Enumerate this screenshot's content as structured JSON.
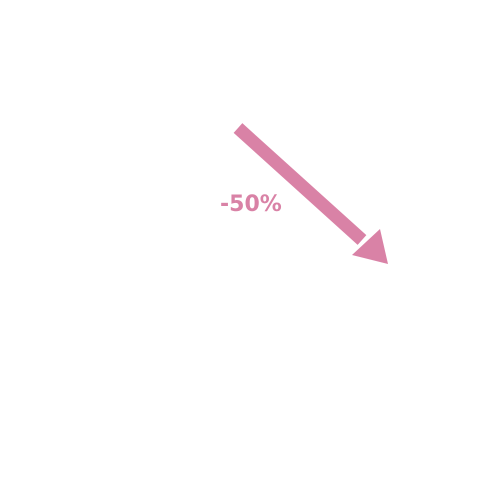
{
  "indicator": {
    "change_text": "-50%",
    "direction": "down-right",
    "color": "#d982a6",
    "icon": "trend-down-arrow-icon"
  }
}
